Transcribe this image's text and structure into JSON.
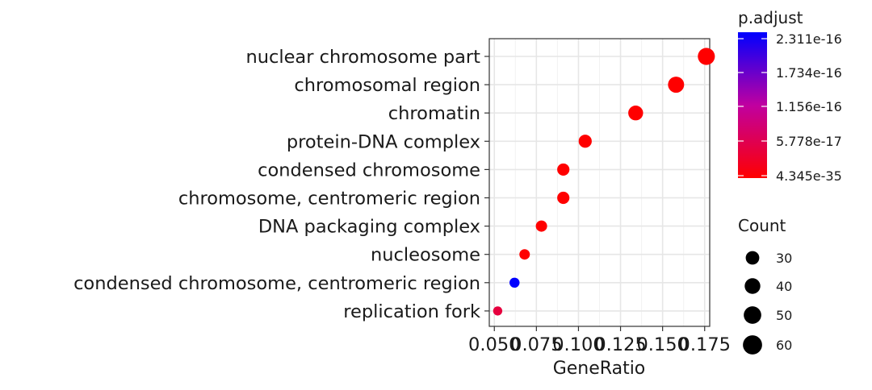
{
  "chart_data": {
    "type": "scatter",
    "title": "",
    "xlabel": "GeneRatio",
    "ylabel": "",
    "xlim": [
      0.047,
      0.178
    ],
    "xticks": [
      0.05,
      0.075,
      0.1,
      0.125,
      0.15,
      0.175
    ],
    "xtick_labels": [
      "0.050",
      "0.075",
      "0.100",
      "0.125",
      "0.150",
      "0.175"
    ],
    "categories": [
      "nuclear chromosome part",
      "chromosomal region",
      "chromatin",
      "protein-DNA complex",
      "condensed chromosome",
      "chromosome, centromeric region",
      "DNA packaging complex",
      "nucleosome",
      "condensed chromosome, centromeric region",
      "replication fork"
    ],
    "points": [
      {
        "term": "nuclear chromosome part",
        "gene_ratio": 0.176,
        "count": 66,
        "p_adjust": 4.345e-35
      },
      {
        "term": "chromosomal region",
        "gene_ratio": 0.158,
        "count": 59,
        "p_adjust": 1e-34
      },
      {
        "term": "chromatin",
        "gene_ratio": 0.134,
        "count": 50,
        "p_adjust": 1e-33
      },
      {
        "term": "protein-DNA complex",
        "gene_ratio": 0.104,
        "count": 39,
        "p_adjust": 1e-30
      },
      {
        "term": "condensed chromosome",
        "gene_ratio": 0.091,
        "count": 34,
        "p_adjust": 1e-28
      },
      {
        "term": "chromosome, centromeric region",
        "gene_ratio": 0.091,
        "count": 34,
        "p_adjust": 1e-27
      },
      {
        "term": "DNA packaging complex",
        "gene_ratio": 0.078,
        "count": 29,
        "p_adjust": 1e-25
      },
      {
        "term": "nucleosome",
        "gene_ratio": 0.068,
        "count": 25,
        "p_adjust": 1e-24
      },
      {
        "term": "condensed chromosome, centromeric region",
        "gene_ratio": 0.062,
        "count": 23,
        "p_adjust": 2.311e-16
      },
      {
        "term": "replication fork",
        "gene_ratio": 0.052,
        "count": 19,
        "p_adjust": 4.5e-17
      }
    ],
    "color_legend": {
      "title": "p.adjust",
      "ticks": [
        "2.311e-16",
        "1.734e-16",
        "1.156e-16",
        "5.778e-17",
        "4.345e-35"
      ],
      "high_color": "#0000ff",
      "low_color": "#ff0000"
    },
    "size_legend": {
      "title": "Count",
      "values": [
        30,
        40,
        50,
        60
      ]
    },
    "grid": true,
    "legend_position": "right"
  }
}
